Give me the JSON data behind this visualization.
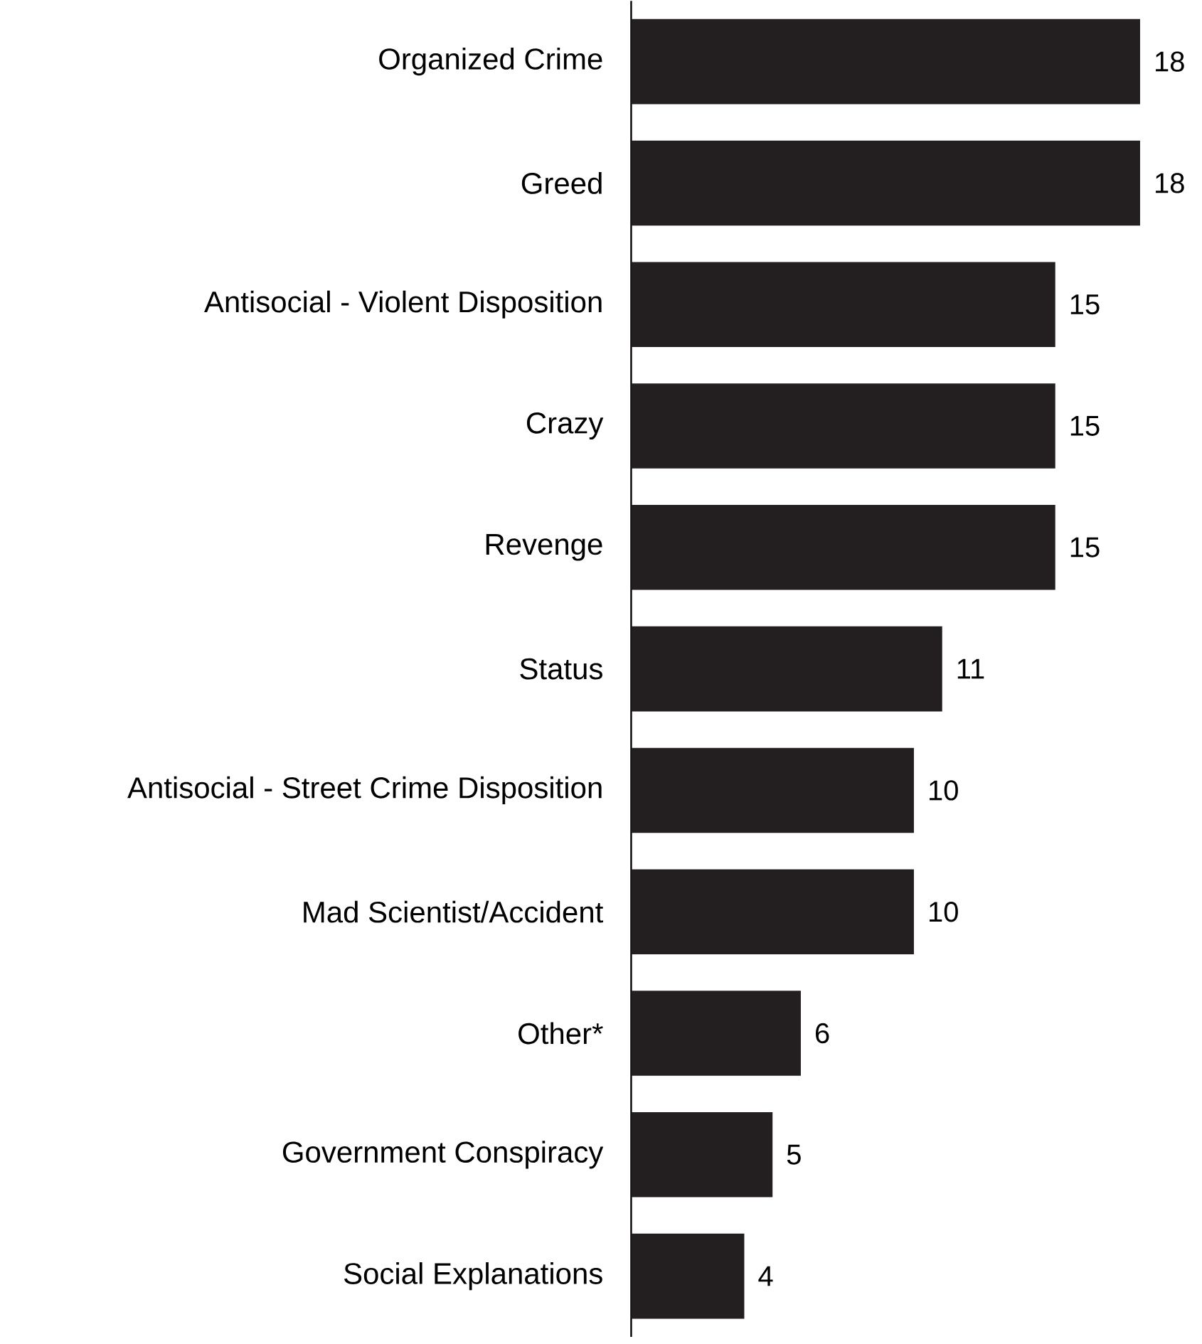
{
  "chart_data": {
    "type": "bar",
    "orientation": "horizontal",
    "categories": [
      "Organized Crime",
      "Greed",
      "Antisocial - Violent Disposition",
      "Crazy",
      "Revenge",
      "Status",
      "Antisocial - Street Crime Disposition",
      "Mad Scientist/Accident",
      "Other*",
      "Government Conspiracy",
      "Social Explanations"
    ],
    "values": [
      18,
      18,
      15,
      15,
      15,
      11,
      10,
      10,
      6,
      5,
      4
    ],
    "color": "#231f20",
    "xlim": [
      0,
      18
    ],
    "data_labels": true,
    "tick_labels": "y"
  }
}
